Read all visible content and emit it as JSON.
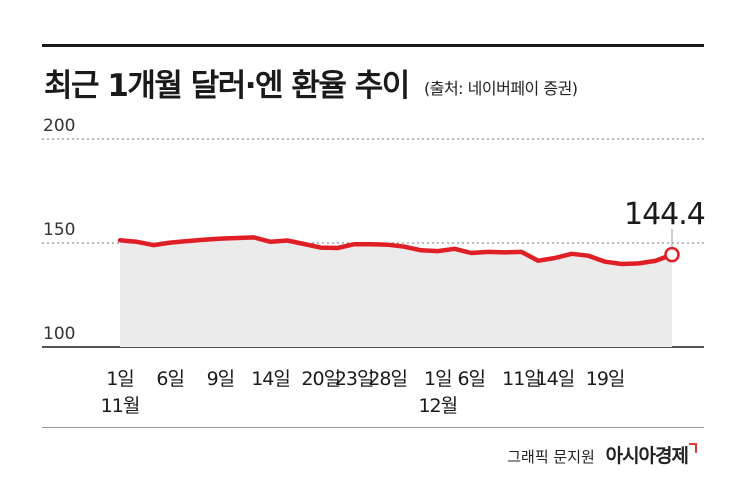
{
  "title": "최근 1개월 달러·엔 환율 추이",
  "source": "(출처: 네이버페이 증권)",
  "credit": "그래픽 문지원",
  "brand": "아시아경제",
  "chart_data": {
    "type": "area",
    "title": "최근 1개월 달러·엔 환율 추이",
    "xlabel": "",
    "ylabel": "",
    "ylim": [
      100,
      200
    ],
    "yticks": [
      200,
      150,
      100
    ],
    "grid": "dotted horizontal",
    "color": "#e01e25",
    "fill": "#ebebeb",
    "months": [
      {
        "label": "11월",
        "index": 0
      },
      {
        "label": "12월",
        "index": 17
      }
    ],
    "x_tick_labels": [
      {
        "label": "1일",
        "index": 0
      },
      {
        "label": "6일",
        "index": 3
      },
      {
        "label": "9일",
        "index": 6
      },
      {
        "label": "14일",
        "index": 9
      },
      {
        "label": "20일",
        "index": 12
      },
      {
        "label": "23일",
        "index": 14
      },
      {
        "label": "28일",
        "index": 16
      },
      {
        "label": "1일",
        "index": 19
      },
      {
        "label": "6일",
        "index": 21
      },
      {
        "label": "11일",
        "index": 24
      },
      {
        "label": "14일",
        "index": 26
      },
      {
        "label": "19일",
        "index": 29
      }
    ],
    "values": [
      151.3,
      150.6,
      149.0,
      150.2,
      150.9,
      151.6,
      152.1,
      152.4,
      152.7,
      150.6,
      151.2,
      149.5,
      147.8,
      147.6,
      149.4,
      149.4,
      149.2,
      148.2,
      146.5,
      146.1,
      147.2,
      145.2,
      145.7,
      145.5,
      145.7,
      141.5,
      142.8,
      144.8,
      143.9,
      141.0,
      139.9,
      140.2,
      141.4,
      144.4
    ],
    "last_value_label": "144.4"
  }
}
